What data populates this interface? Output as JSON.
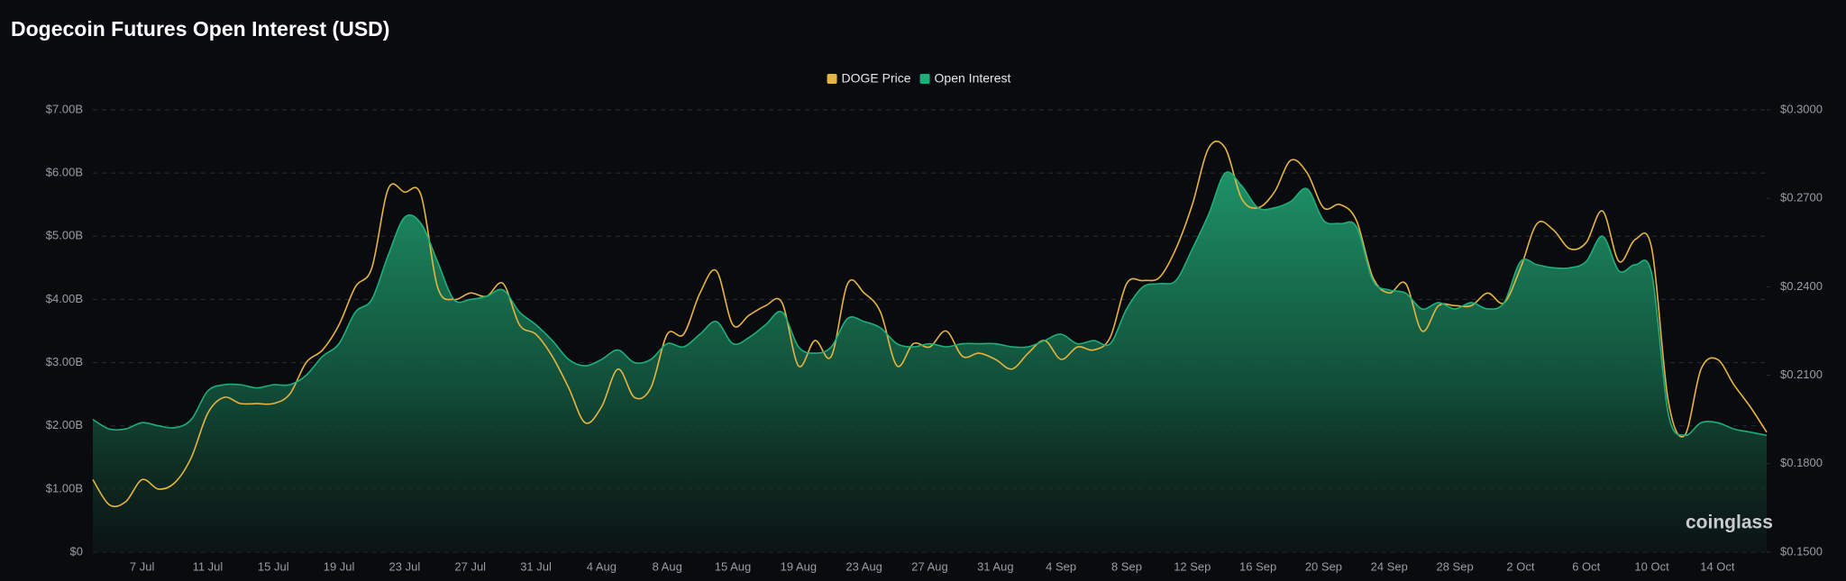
{
  "chart_data": {
    "type": "area",
    "title": "Dogecoin Futures Open Interest (USD)",
    "watermark": "coinglass",
    "legend": "top",
    "grid": true,
    "categories": [
      null,
      null,
      null,
      "7 Jul",
      null,
      null,
      null,
      "11 Jul",
      null,
      null,
      null,
      "15 Jul",
      null,
      null,
      null,
      "19 Jul",
      null,
      null,
      null,
      "23 Jul",
      null,
      null,
      null,
      "27 Jul",
      null,
      null,
      null,
      "31 Jul",
      null,
      null,
      null,
      "4 Aug",
      null,
      null,
      null,
      "8 Aug",
      null,
      null,
      null,
      "15 Aug",
      null,
      null,
      null,
      "19 Aug",
      null,
      null,
      null,
      "23 Aug",
      null,
      null,
      null,
      "27 Aug",
      null,
      null,
      null,
      "31 Aug",
      null,
      null,
      null,
      "4 Sep",
      null,
      null,
      null,
      "8 Sep",
      null,
      null,
      null,
      "12 Sep",
      null,
      null,
      null,
      "16 Sep",
      null,
      null,
      null,
      "20 Sep",
      null,
      null,
      null,
      "24 Sep",
      null,
      null,
      null,
      "28 Sep",
      null,
      null,
      null,
      "2 Oct",
      null,
      null,
      null,
      "6 Oct",
      null,
      null,
      null,
      "10 Oct",
      null,
      null,
      null,
      "14 Oct",
      null,
      null,
      null
    ],
    "series": [
      {
        "name": "DOGE Price",
        "color": "#e6b441",
        "axis": "y2",
        "values": [
          0.1746,
          0.1661,
          0.1671,
          0.1746,
          0.1714,
          0.1736,
          0.1821,
          0.1971,
          0.2025,
          0.2004,
          0.2004,
          0.2004,
          0.2036,
          0.2143,
          0.2186,
          0.2271,
          0.24,
          0.2464,
          0.2732,
          0.2721,
          0.2711,
          0.24,
          0.2357,
          0.2379,
          0.2368,
          0.2411,
          0.2271,
          0.2239,
          0.2164,
          0.2057,
          0.1939,
          0.1993,
          0.2121,
          0.2025,
          0.2057,
          0.2239,
          0.2239,
          0.2379,
          0.2454,
          0.2271,
          0.2304,
          0.2336,
          0.2346,
          0.2132,
          0.2218,
          0.2164,
          0.2411,
          0.2379,
          0.2314,
          0.2132,
          0.2207,
          0.2196,
          0.225,
          0.2164,
          0.2175,
          0.2154,
          0.2121,
          0.2175,
          0.2218,
          0.2154,
          0.2196,
          0.2186,
          0.2229,
          0.2411,
          0.2421,
          0.2432,
          0.2529,
          0.2679,
          0.2871,
          0.2871,
          0.27,
          0.2668,
          0.2721,
          0.2829,
          0.2786,
          0.2668,
          0.2679,
          0.2625,
          0.2432,
          0.2379,
          0.2411,
          0.225,
          0.2336,
          0.2336,
          0.2336,
          0.2379,
          0.2346,
          0.2464,
          0.2614,
          0.2593,
          0.2529,
          0.255,
          0.2657,
          0.2486,
          0.2561,
          0.2529,
          0.2014,
          0.1896,
          0.2121,
          0.2154,
          0.2068,
          0.1993,
          0.1907
        ]
      },
      {
        "name": "Open Interest",
        "color": "#1fae7a",
        "values": [
          2.1,
          1.95,
          1.95,
          2.05,
          2.0,
          1.97,
          2.1,
          2.55,
          2.65,
          2.65,
          2.6,
          2.65,
          2.65,
          2.8,
          3.1,
          3.3,
          3.8,
          4.0,
          4.7,
          5.3,
          5.2,
          4.6,
          4.0,
          4.0,
          4.05,
          4.15,
          3.8,
          3.6,
          3.35,
          3.05,
          2.95,
          3.05,
          3.2,
          3.0,
          3.05,
          3.3,
          3.25,
          3.45,
          3.65,
          3.3,
          3.4,
          3.6,
          3.8,
          3.25,
          3.15,
          3.25,
          3.7,
          3.65,
          3.55,
          3.3,
          3.25,
          3.3,
          3.25,
          3.3,
          3.3,
          3.3,
          3.25,
          3.25,
          3.35,
          3.45,
          3.3,
          3.35,
          3.3,
          3.85,
          4.2,
          4.25,
          4.3,
          4.8,
          5.35,
          6.0,
          5.8,
          5.45,
          5.45,
          5.55,
          5.75,
          5.25,
          5.2,
          5.15,
          4.3,
          4.15,
          4.1,
          3.85,
          3.95,
          3.85,
          3.95,
          3.85,
          3.95,
          4.6,
          4.55,
          4.5,
          4.5,
          4.6,
          5.0,
          4.45,
          4.55,
          4.4,
          2.2,
          1.85,
          2.05,
          2.05,
          1.95,
          1.9,
          1.85
        ]
      }
    ],
    "ylim": [
      0,
      7
    ],
    "yticks": [
      {
        "value": 0,
        "label": "$0"
      },
      {
        "value": 1,
        "label": "$1.00B"
      },
      {
        "value": 2,
        "label": "$2.00B"
      },
      {
        "value": 3,
        "label": "$3.00B"
      },
      {
        "value": 4,
        "label": "$4.00B"
      },
      {
        "value": 5,
        "label": "$5.00B"
      },
      {
        "value": 6,
        "label": "$6.00B"
      },
      {
        "value": 7,
        "label": "$7.00B"
      }
    ],
    "y2lim": [
      0.15,
      0.3
    ],
    "y2ticks": [
      {
        "value": 0.15,
        "label": "$0.1500"
      },
      {
        "value": 0.18,
        "label": "$0.1800"
      },
      {
        "value": 0.21,
        "label": "$0.2100"
      },
      {
        "value": 0.24,
        "label": "$0.2400"
      },
      {
        "value": 0.27,
        "label": "$0.2700"
      },
      {
        "value": 0.3,
        "label": "$0.3000"
      }
    ]
  }
}
